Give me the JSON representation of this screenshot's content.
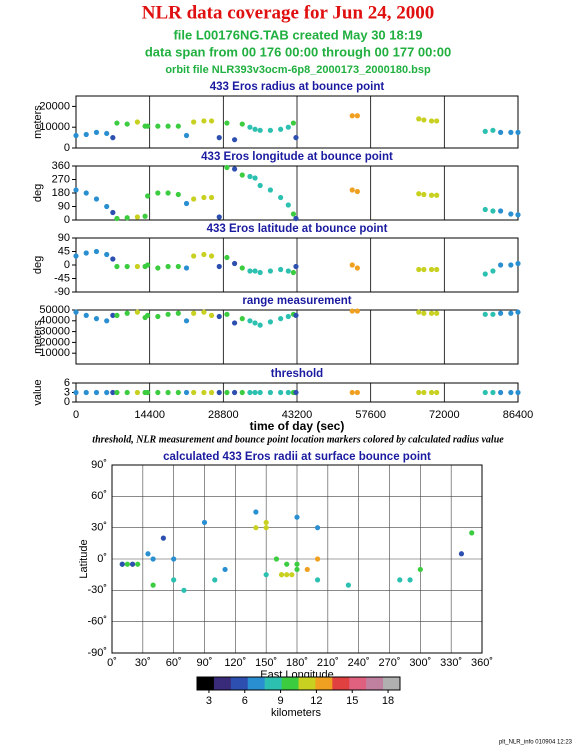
{
  "header": {
    "title": "NLR data coverage for Jun 24, 2000",
    "lines": [
      "file L00176NG.TAB created May 30 18:19",
      "data span from 00 176 00:00 through 00 177 00:00",
      "orbit file NLR393v3ocm-6p8_2000173_2000180.bsp"
    ]
  },
  "chart_data": [
    {
      "type": "scatter",
      "title": "433 Eros radius at bounce point",
      "ylabel": "meters",
      "x": [
        0,
        2000,
        4000,
        6000,
        7200,
        8000,
        10000,
        12000,
        13500,
        14000,
        16000,
        18000,
        20000,
        21600,
        23000,
        25000,
        26500,
        28000,
        29500,
        31000,
        32500,
        34000,
        35000,
        36000,
        38000,
        40000,
        41500,
        42500,
        43000,
        54000,
        55000,
        67000,
        68000,
        69500,
        70500,
        80000,
        81500,
        83000,
        85000,
        86400
      ],
      "values": [
        6000,
        6500,
        7500,
        7000,
        5000,
        12000,
        11500,
        12500,
        10500,
        10500,
        10500,
        10500,
        10500,
        6000,
        12500,
        13000,
        13000,
        5000,
        12000,
        4000,
        11500,
        10000,
        9000,
        8500,
        8500,
        9000,
        10000,
        12000,
        5000,
        15500,
        15500,
        14000,
        13500,
        13000,
        13000,
        8000,
        8500,
        7500,
        7500,
        7500
      ],
      "xlim": [
        0,
        86400
      ],
      "xticks": [
        0,
        14400,
        28800,
        43200,
        57600,
        72000,
        86400
      ],
      "ylim": [
        0,
        25000
      ],
      "yticks": [
        0,
        10000,
        20000
      ]
    },
    {
      "type": "scatter",
      "title": "433 Eros longitude at bounce point",
      "ylabel": "deg",
      "values": [
        200,
        180,
        140,
        90,
        50,
        10,
        15,
        20,
        25,
        160,
        180,
        180,
        170,
        110,
        140,
        150,
        150,
        20,
        350,
        340,
        300,
        290,
        280,
        230,
        200,
        150,
        100,
        40,
        10,
        200,
        190,
        175,
        170,
        165,
        165,
        70,
        60,
        60,
        40,
        35
      ],
      "xlim": [
        0,
        86400
      ],
      "xticks": [
        0,
        14400,
        28800,
        43200,
        57600,
        72000,
        86400
      ],
      "ylim": [
        0,
        360
      ],
      "yticks": [
        0,
        90,
        180,
        270,
        360
      ]
    },
    {
      "type": "scatter",
      "title": "433 Eros latitude at bounce point",
      "ylabel": "deg",
      "values": [
        30,
        40,
        45,
        35,
        20,
        -5,
        -5,
        -5,
        -5,
        0,
        -10,
        -5,
        -5,
        -10,
        30,
        35,
        30,
        -5,
        25,
        5,
        -10,
        -20,
        -20,
        -25,
        -20,
        -15,
        -20,
        -25,
        -5,
        0,
        -10,
        -15,
        -15,
        -15,
        -15,
        -30,
        -20,
        0,
        0,
        5
      ],
      "xlim": [
        0,
        86400
      ],
      "xticks": [
        0,
        14400,
        28800,
        43200,
        57600,
        72000,
        86400
      ],
      "ylim": [
        -90,
        90
      ],
      "yticks": [
        -90,
        -45,
        0,
        45,
        90
      ]
    },
    {
      "type": "scatter",
      "title": "range measurement",
      "ylabel": "meters",
      "values": [
        48000,
        45000,
        42000,
        40000,
        45000,
        45000,
        47000,
        48000,
        43000,
        45000,
        44000,
        46000,
        47000,
        40000,
        47000,
        48000,
        45000,
        44000,
        46000,
        38000,
        42000,
        40000,
        38000,
        36000,
        39000,
        42000,
        44000,
        46000,
        45000,
        49000,
        49000,
        48000,
        47000,
        47000,
        47000,
        46000,
        46000,
        47000,
        47000,
        48000
      ],
      "xlim": [
        0,
        86400
      ],
      "xticks": [
        0,
        14400,
        28800,
        43200,
        57600,
        72000,
        86400
      ],
      "ylim": [
        0,
        50000
      ],
      "yticks": [
        10000,
        20000,
        30000,
        40000,
        50000
      ]
    },
    {
      "type": "scatter",
      "title": "threshold",
      "ylabel": "value",
      "xlabel": "time of day (sec)",
      "values": [
        3,
        3,
        3,
        3,
        3,
        3,
        3,
        3,
        3,
        3,
        3,
        3,
        3,
        3,
        3,
        3,
        3,
        3,
        3,
        3,
        3,
        3,
        3,
        3,
        3,
        3,
        3,
        3,
        3,
        3,
        3,
        3,
        3,
        3,
        3,
        3,
        3,
        3,
        3,
        3
      ],
      "xlim": [
        0,
        86400
      ],
      "xticks": [
        0,
        14400,
        28800,
        43200,
        57600,
        72000,
        86400
      ],
      "ylim": [
        0,
        6
      ],
      "yticks": [
        0,
        3,
        6
      ]
    },
    {
      "type": "map",
      "title": "calculated 433 Eros radii at surface bounce point",
      "xlabel": "East Longitude",
      "ylabel": "Latitude",
      "xlim": [
        0,
        360
      ],
      "ylim": [
        -90,
        90
      ],
      "xticks": [
        {
          "value": 0,
          "label": "0˚"
        },
        {
          "value": 30,
          "label": "30˚"
        },
        {
          "value": 60,
          "label": "60˚"
        },
        {
          "value": 90,
          "label": "90˚"
        },
        {
          "value": 120,
          "label": "120˚"
        },
        {
          "value": 150,
          "label": "150˚"
        },
        {
          "value": 180,
          "label": "180˚"
        },
        {
          "value": 210,
          "label": "210˚"
        },
        {
          "value": 240,
          "label": "240˚"
        },
        {
          "value": 270,
          "label": "270˚"
        },
        {
          "value": 300,
          "label": "300˚"
        },
        {
          "value": 330,
          "label": "330˚"
        },
        {
          "value": 360,
          "label": "360˚"
        }
      ],
      "yticks": [
        {
          "value": -90,
          "label": "-90˚"
        },
        {
          "value": -60,
          "label": "-60˚"
        },
        {
          "value": -30,
          "label": "-30˚"
        },
        {
          "value": 0,
          "label": "0˚"
        },
        {
          "value": 30,
          "label": "30˚"
        },
        {
          "value": 60,
          "label": "60˚"
        },
        {
          "value": 90,
          "label": "90˚"
        }
      ]
    }
  ],
  "caption": "threshold, NLR measurement and bounce point location markers colored by calculated radius value",
  "colorbar": {
    "label": "kilometers",
    "lim": [
      2,
      19
    ],
    "ticks": [
      3,
      6,
      9,
      12,
      15,
      18
    ],
    "colors": [
      "#000000",
      "#3a2a7a",
      "#2c4fb0",
      "#2a8fd0",
      "#2cc0b0",
      "#3ccc40",
      "#c8d020",
      "#f0a020",
      "#e04040",
      "#e06080",
      "#c080a0",
      "#b0b0b0"
    ]
  },
  "footer": "plt_NLR_info 010904 12:23"
}
